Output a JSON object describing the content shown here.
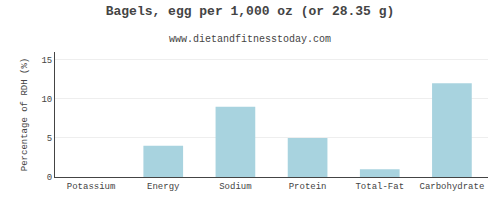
{
  "chart_data": {
    "type": "bar",
    "title": "Bagels, egg per 1,000 oz (or 28.35 g)",
    "subtitle": "www.dietandfitnesstoday.com",
    "categories": [
      "Potassium",
      "Energy",
      "Sodium",
      "Protein",
      "Total-Fat",
      "Carbohydrate"
    ],
    "values": [
      0.0,
      4.0,
      9.0,
      5.0,
      1.0,
      12.0
    ],
    "color": "#a8d3df",
    "ylabel": "Percentage of RDH (%)",
    "ylim": [
      0,
      16
    ],
    "yticks": [
      0,
      5,
      10,
      15
    ],
    "grid": true
  }
}
